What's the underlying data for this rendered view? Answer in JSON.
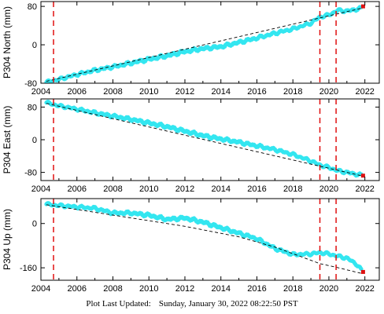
{
  "footer": {
    "label": "Plot Last Updated:",
    "value": "Sunday, January 30, 2022 08:22:50 PST"
  },
  "colors": {
    "data": "#33e6f0",
    "model": "#000000",
    "event_line": "#e01010",
    "marker": "#dd1111"
  },
  "chart_data": [
    {
      "type": "line",
      "ylabel": "P304 North (mm)",
      "xlim": [
        2004,
        2022.8
      ],
      "ylim": [
        -80,
        90
      ],
      "xticks": [
        2004,
        2006,
        2008,
        2010,
        2012,
        2014,
        2016,
        2018,
        2020,
        2022
      ],
      "yticks": [
        -80,
        0,
        80
      ],
      "vlines": [
        2004.7,
        2019.5,
        2020.4
      ],
      "grid": false,
      "series": [
        {
          "role": "data",
          "x": [
            2004.3,
            2005,
            2006,
            2007,
            2008,
            2009,
            2010,
            2011,
            2012,
            2013,
            2014,
            2015,
            2016,
            2017,
            2018,
            2019,
            2019.5,
            2020,
            2020.5,
            2021,
            2021.8
          ],
          "y": [
            -78,
            -72,
            -62,
            -53,
            -46,
            -38,
            -30,
            -23,
            -14,
            -8,
            -4,
            5,
            14,
            24,
            33,
            45,
            58,
            62,
            72,
            70,
            76
          ]
        },
        {
          "role": "model",
          "x": [
            2004.3,
            2021.8
          ],
          "y": [
            -76,
            76
          ]
        }
      ],
      "markers": [
        {
          "x": 2021.9,
          "y": 80
        }
      ]
    },
    {
      "type": "line",
      "ylabel": "P304 East (mm)",
      "xlim": [
        2004,
        2022.8
      ],
      "ylim": [
        -100,
        100
      ],
      "xticks": [
        2004,
        2006,
        2008,
        2010,
        2012,
        2014,
        2016,
        2018,
        2020,
        2022
      ],
      "yticks": [
        -80,
        0,
        80
      ],
      "vlines": [
        2004.7,
        2019.5,
        2020.4
      ],
      "grid": false,
      "series": [
        {
          "role": "data",
          "x": [
            2004.3,
            2005,
            2006,
            2007,
            2008,
            2009,
            2010,
            2011,
            2012,
            2013,
            2014,
            2015,
            2016,
            2017,
            2018,
            2019,
            2019.5,
            2020,
            2020.5,
            2021,
            2021.8
          ],
          "y": [
            91,
            83,
            75,
            66,
            58,
            50,
            41,
            32,
            21,
            10,
            2,
            -6,
            -15,
            -24,
            -36,
            -52,
            -62,
            -68,
            -76,
            -80,
            -87
          ]
        },
        {
          "role": "model",
          "x": [
            2004.3,
            2021.8
          ],
          "y": [
            89,
            -88
          ]
        }
      ],
      "markers": [
        {
          "x": 2021.9,
          "y": -88
        }
      ]
    },
    {
      "type": "line",
      "ylabel": "P304 Up (mm)",
      "xlim": [
        2004,
        2022.8
      ],
      "ylim": [
        -205,
        90
      ],
      "xticks": [
        2004,
        2006,
        2008,
        2010,
        2012,
        2014,
        2016,
        2018,
        2020,
        2022
      ],
      "yticks": [
        -160,
        0
      ],
      "vlines": [
        2004.7,
        2019.5,
        2020.4
      ],
      "grid": false,
      "series": [
        {
          "role": "data",
          "x": [
            2004.3,
            2005,
            2006,
            2007,
            2008,
            2009,
            2010,
            2011,
            2012,
            2013,
            2014,
            2015,
            2016,
            2017,
            2018,
            2019,
            2019.5,
            2020,
            2020.5,
            2021,
            2021.5,
            2021.8
          ],
          "y": [
            70,
            65,
            60,
            55,
            38,
            38,
            30,
            15,
            20,
            5,
            -15,
            -35,
            -55,
            -90,
            -112,
            -110,
            -105,
            -110,
            -118,
            -125,
            -145,
            -168
          ]
        },
        {
          "role": "model",
          "x": [
            2004.3,
            2012,
            2015,
            2017,
            2019.5,
            2020.4,
            2021.8
          ],
          "y": [
            68,
            -10,
            -48,
            -85,
            -145,
            -158,
            -180
          ]
        }
      ],
      "markers": [
        {
          "x": 2021.9,
          "y": -175
        }
      ]
    }
  ]
}
